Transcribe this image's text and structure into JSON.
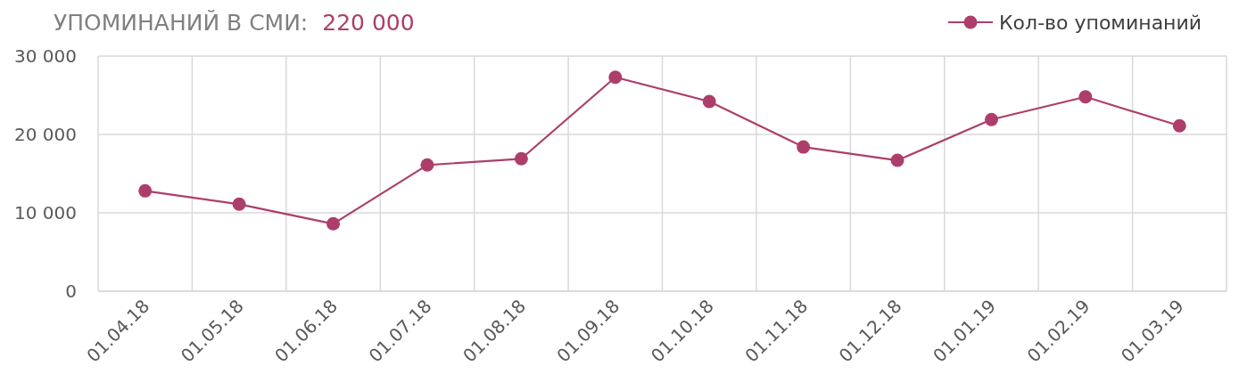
{
  "chart_data": {
    "type": "line",
    "title": "УПОМИНАНИЙ В СМИ:",
    "subtitle": "220 000",
    "categories": [
      "01.04.18",
      "01.05.18",
      "01.06.18",
      "01.07.18",
      "01.08.18",
      "01.09.18",
      "01.10.18",
      "01.11.18",
      "01.12.18",
      "01.01.19",
      "01.02.19",
      "01.03.19"
    ],
    "series": [
      {
        "name": "Кол-во упоминаний",
        "color": "#ad3e6b",
        "values": [
          12800,
          11100,
          8600,
          16100,
          16900,
          27300,
          24200,
          18400,
          16700,
          21900,
          24800,
          21100
        ]
      }
    ],
    "ylim": [
      0,
      30000
    ],
    "yticks": [
      {
        "value": 0,
        "label": "0"
      },
      {
        "value": 10000,
        "label": "10 000"
      },
      {
        "value": 20000,
        "label": "20 000"
      },
      {
        "value": 30000,
        "label": "30 000"
      }
    ],
    "grid": true,
    "legend": "top right",
    "marker": "circle",
    "line_style": "solid"
  }
}
